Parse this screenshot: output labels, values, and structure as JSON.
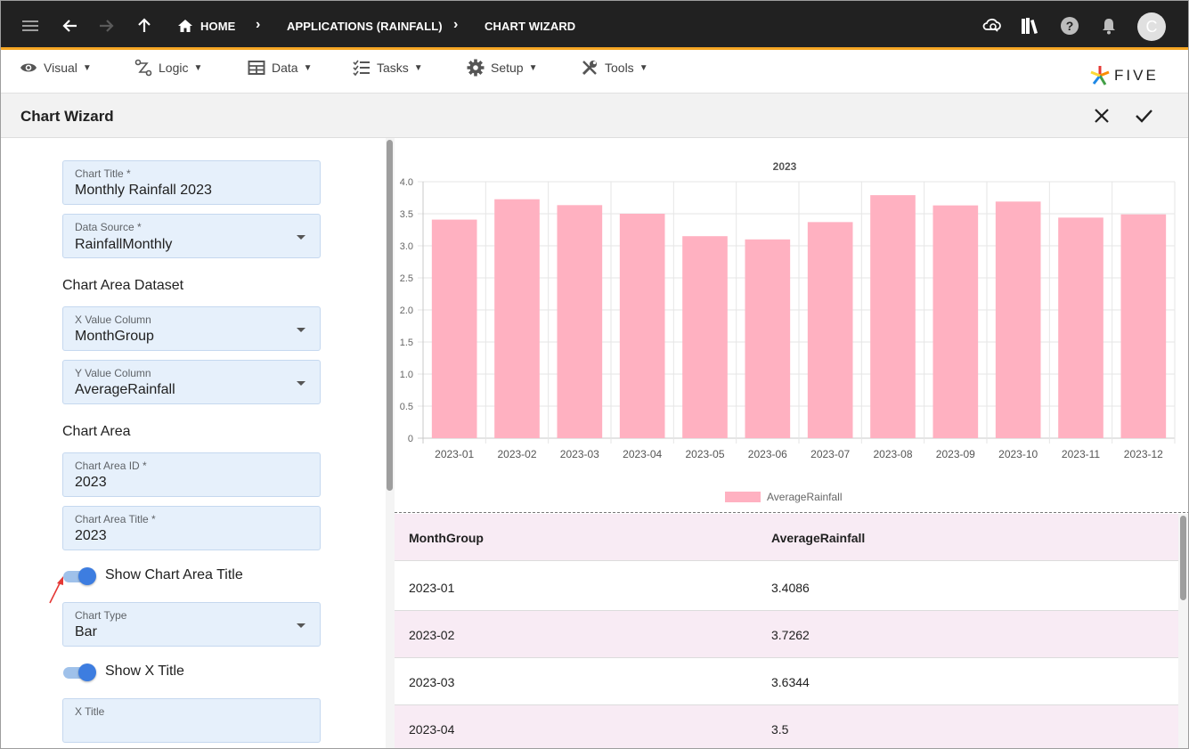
{
  "topbar": {
    "breadcrumbs": [
      "HOME",
      "APPLICATIONS (RAINFALL)",
      "CHART WIZARD"
    ],
    "avatar_initial": "C"
  },
  "menu": [
    {
      "label": "Visual",
      "icon": "eye-icon"
    },
    {
      "label": "Logic",
      "icon": "logic-icon"
    },
    {
      "label": "Data",
      "icon": "table-icon"
    },
    {
      "label": "Tasks",
      "icon": "tasks-icon"
    },
    {
      "label": "Setup",
      "icon": "gear-icon"
    },
    {
      "label": "Tools",
      "icon": "tools-icon"
    }
  ],
  "logo_text": "FIVE",
  "page_title": "Chart Wizard",
  "form": {
    "chart_title": {
      "label": "Chart Title *",
      "value": "Monthly Rainfall 2023"
    },
    "data_source": {
      "label": "Data Source *",
      "value": "RainfallMonthly"
    },
    "dataset_section": "Chart Area Dataset",
    "x_value_column": {
      "label": "X Value Column",
      "value": "MonthGroup"
    },
    "y_value_column": {
      "label": "Y Value Column",
      "value": "AverageRainfall"
    },
    "chart_area_section": "Chart Area",
    "chart_area_id": {
      "label": "Chart Area ID *",
      "value": "2023"
    },
    "chart_area_title": {
      "label": "Chart Area Title *",
      "value": "2023"
    },
    "show_chart_area_title": {
      "label": "Show Chart Area Title",
      "checked": true
    },
    "chart_type": {
      "label": "Chart Type",
      "value": "Bar"
    },
    "show_x_title": {
      "label": "Show X Title",
      "checked": true
    },
    "x_title": {
      "label": "X Title",
      "value": ""
    }
  },
  "chart_data": {
    "type": "bar",
    "title": "2023",
    "categories": [
      "2023-01",
      "2023-02",
      "2023-03",
      "2023-04",
      "2023-05",
      "2023-06",
      "2023-07",
      "2023-08",
      "2023-09",
      "2023-10",
      "2023-11",
      "2023-12"
    ],
    "series": [
      {
        "name": "AverageRainfall",
        "values": [
          3.4086,
          3.7262,
          3.6344,
          3.5,
          3.15,
          3.1,
          3.37,
          3.79,
          3.63,
          3.69,
          3.44,
          3.49
        ],
        "color": "#ffb1c1"
      }
    ],
    "yticks": [
      "0",
      "0.5",
      "1.0",
      "1.5",
      "2.0",
      "2.5",
      "3.0",
      "3.5",
      "4.0"
    ],
    "ylim": [
      0,
      4
    ],
    "grid": true,
    "legend_position": "bottom"
  },
  "table": {
    "headers": [
      "MonthGroup",
      "AverageRainfall"
    ],
    "rows": [
      [
        "2023-01",
        "3.4086"
      ],
      [
        "2023-02",
        "3.7262"
      ],
      [
        "2023-03",
        "3.6344"
      ],
      [
        "2023-04",
        "3.5"
      ]
    ]
  }
}
